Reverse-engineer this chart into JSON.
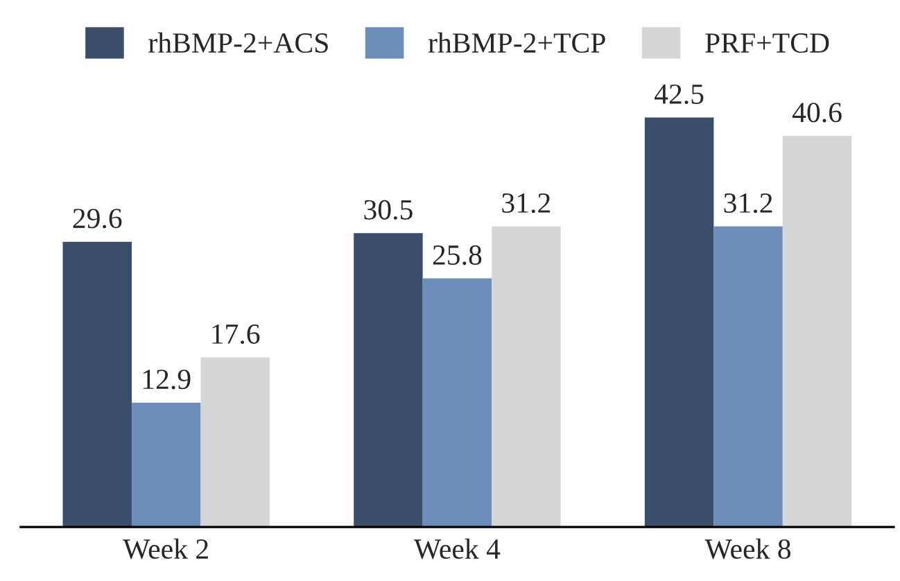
{
  "chart_data": {
    "type": "bar",
    "categories": [
      "Week 2",
      "Week 4",
      "Week 8"
    ],
    "series": [
      {
        "name": "rhBMP-2+ACS",
        "color": "#3a4d6b",
        "values": [
          29.6,
          30.5,
          42.5
        ]
      },
      {
        "name": "rhBMP-2+TCP",
        "color": "#6d8dba",
        "values": [
          12.9,
          25.8,
          31.2
        ]
      },
      {
        "name": "PRF+TCD",
        "color": "#d5d6d8",
        "values": [
          17.6,
          31.2,
          40.6
        ]
      }
    ],
    "data_labels": true,
    "legend": "top",
    "grid": false
  }
}
